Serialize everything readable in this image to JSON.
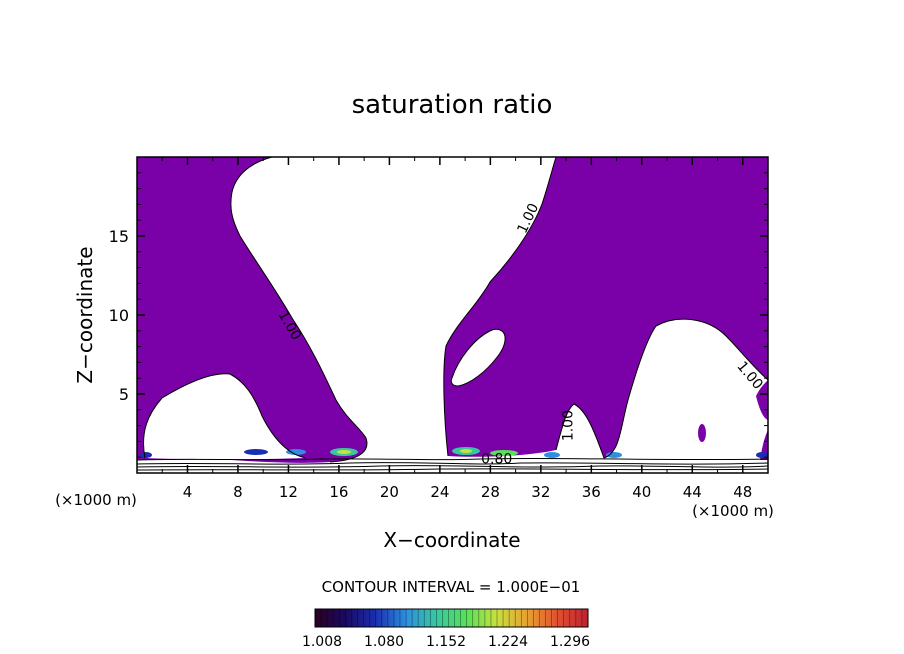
{
  "chart_data": {
    "type": "heatmap",
    "title": "saturation ratio",
    "xlabel": "X−coordinate",
    "ylabel": "Z−coordinate",
    "x_unit_label": "(×1000 m)",
    "y_unit_label": "(×1000 m)",
    "xlim": [
      0,
      50
    ],
    "ylim": [
      0,
      20
    ],
    "x_ticks": [
      4,
      8,
      12,
      16,
      20,
      24,
      28,
      32,
      36,
      40,
      44,
      48
    ],
    "y_ticks": [
      5,
      10,
      15
    ],
    "contour_labels": [
      {
        "text": "1.00",
        "x": 11.8,
        "z": 9.2,
        "angle": 60
      },
      {
        "text": "1.00",
        "x": 31.3,
        "z": 16.0,
        "angle": -65
      },
      {
        "text": "1.00",
        "x": 48.3,
        "z": 6.0,
        "angle": 50
      },
      {
        "text": "1.00",
        "x": 34.5,
        "z": 3.0,
        "angle": -90
      },
      {
        "text": "0.80",
        "x": 28.5,
        "z": 0.6,
        "angle": 0
      }
    ],
    "contour_interval_text": "CONTOUR INTERVAL = 1.000E−01",
    "colorbar": {
      "tick_labels": [
        "1.008",
        "1.080",
        "1.152",
        "1.224",
        "1.296"
      ],
      "colors": [
        "#2b0022",
        "#1a0a60",
        "#1a2fb0",
        "#2e8fe0",
        "#38c8a0",
        "#58e05a",
        "#c8e040",
        "#e8a030",
        "#e05030",
        "#c02030"
      ]
    },
    "fill_color": "#7a00a8"
  }
}
